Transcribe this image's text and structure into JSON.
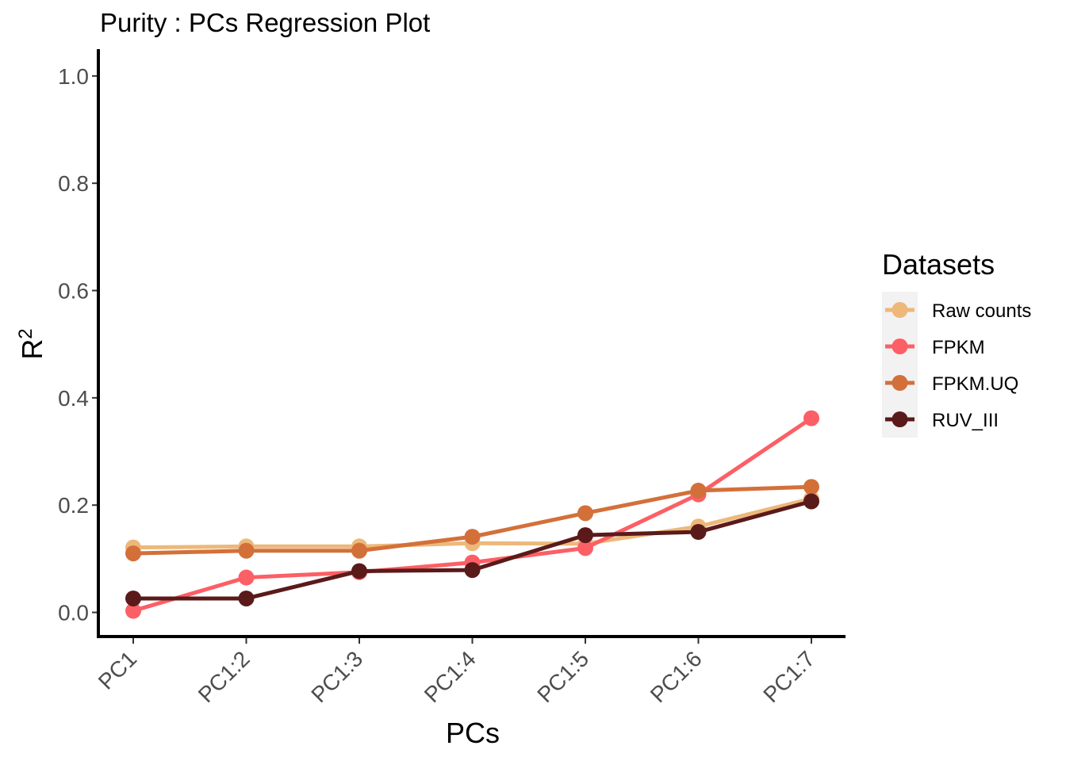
{
  "chart_data": {
    "type": "line",
    "title": "Purity : PCs Regression Plot",
    "xlabel": "PCs",
    "ylabel": "R",
    "ylabel_superscript": "2",
    "categories": [
      "PC1",
      "PC1:2",
      "PC1:3",
      "PC1:4",
      "PC1:5",
      "PC1:6",
      "PC1:7"
    ],
    "yticks": [
      "0.0",
      "0.2",
      "0.4",
      "0.6",
      "0.8",
      "1.0"
    ],
    "ylim": [
      -0.045,
      1.05
    ],
    "grid": false,
    "legend": {
      "title": "Datasets",
      "placement": "right"
    },
    "series": [
      {
        "name": "Raw counts",
        "color": "#EDB87A",
        "values": [
          0.121,
          0.123,
          0.123,
          0.129,
          0.128,
          0.16,
          0.212
        ]
      },
      {
        "name": "FPKM",
        "color": "#FC5F65",
        "values": [
          0.003,
          0.065,
          0.075,
          0.093,
          0.12,
          0.22,
          0.362
        ]
      },
      {
        "name": "FPKM.UQ",
        "color": "#D3703A",
        "values": [
          0.11,
          0.115,
          0.115,
          0.141,
          0.185,
          0.227,
          0.234
        ]
      },
      {
        "name": "RUV_III",
        "color": "#5B1A1A",
        "values": [
          0.026,
          0.026,
          0.077,
          0.079,
          0.144,
          0.15,
          0.207
        ]
      }
    ]
  }
}
